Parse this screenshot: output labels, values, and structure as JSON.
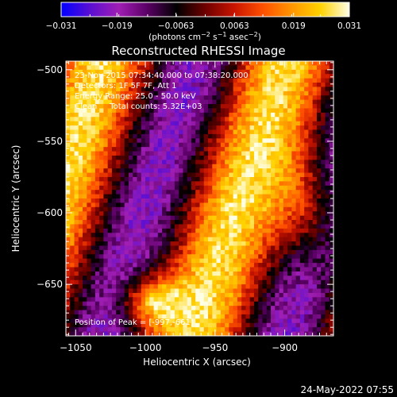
{
  "chart_data": {
    "type": "heatmap",
    "title": "Reconstructed RHESSI Image",
    "xlabel": "Heliocentric X (arcsec)",
    "ylabel": "Heliocentric Y (arcsec)",
    "xlim": [
      -1057,
      -865
    ],
    "ylim": [
      -686,
      -494
    ],
    "x_ticks": [
      -1050,
      -1000,
      -950,
      -900
    ],
    "x_tick_labels": [
      "−1050",
      "−1000",
      "−950",
      "−900"
    ],
    "y_ticks": [
      -650,
      -600,
      -550,
      -500
    ],
    "y_tick_labels": [
      "−650",
      "−600",
      "−550",
      "−500"
    ],
    "colorbar": {
      "min": -0.031,
      "max": 0.031,
      "ticks": [
        -0.031,
        -0.019,
        -0.0063,
        0.0063,
        0.019,
        0.031
      ],
      "tick_labels": [
        "−0.031",
        "−0.019",
        "−0.0063",
        "0.0063",
        "0.019",
        "0.031"
      ],
      "colors": [
        "#0000ff",
        "#5a0fd2",
        "#a01eb4",
        "#5a0064",
        "#000000",
        "#6e0000",
        "#c81400",
        "#ff5000",
        "#ff9600",
        "#ffd200",
        "#ffffe6"
      ]
    },
    "annotations": [
      "23-Nov-2015 07:34:40.000 to 07:38:20.000",
      "Detectors: 1F 5F 7F, Att 1",
      "Energy Range: 25.0 - 50.0 keV",
      "Clean     Total counts: 5.32E+03"
    ],
    "peak_label": "Position of Peak = [-997,-661]",
    "peak": [
      -997,
      -661
    ]
  },
  "colorbar_units": {
    "open": "(photons cm",
    "exp1": "−2",
    "mid1": " s",
    "exp2": "−1",
    "mid2": " asec",
    "exp3": "−2",
    "close": ")"
  },
  "footer_date": "24-May-2022 07:55"
}
